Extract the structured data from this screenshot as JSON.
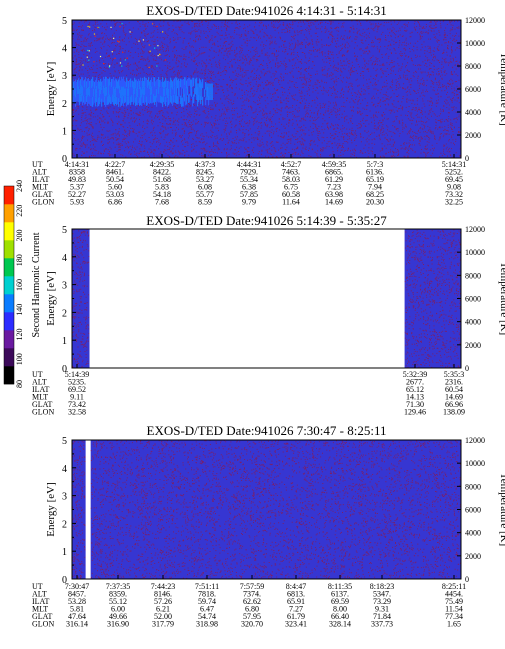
{
  "chart_data": [
    {
      "type": "heatmap",
      "title": "EXOS-D/TED   Date:941026  4:14:31 - 5:14:31",
      "ylabel": "Energy [eV]",
      "y2label": "Temperature [K]",
      "ylim": [
        0,
        5
      ],
      "y2lim": [
        0,
        12000
      ],
      "yticks": [
        "0",
        "1",
        "2",
        "3",
        "4",
        "5"
      ],
      "y2ticks": [
        "0",
        "2000",
        "4000",
        "6000",
        "8000",
        "10000",
        "12000"
      ],
      "table": {
        "row_labels": [
          "UT",
          "ALT",
          "ILAT",
          "MLT",
          "GLAT",
          "GLON"
        ],
        "columns": [
          [
            "4:14:31",
            "8358",
            "49.83",
            "5.37",
            "52.27",
            "5.93"
          ],
          [
            "4:22:7",
            "8461.",
            "50.54",
            "5.60",
            "53.03",
            "6.86"
          ],
          [
            "4:29:35",
            "8422.",
            "51.68",
            "5.83",
            "54.18",
            "7.68"
          ],
          [
            "4:37:3",
            "8245.",
            "53.27",
            "6.08",
            "55.77",
            "8.59"
          ],
          [
            "4:44:31",
            "7929.",
            "55.34",
            "6.38",
            "57.85",
            "9.79"
          ],
          [
            "4:52:7",
            "7463.",
            "58.03",
            "6.75",
            "60.58",
            "11.64"
          ],
          [
            "4:59:35",
            "6865.",
            "61.29",
            "7.23",
            "63.98",
            "14.69"
          ],
          [
            "5:7:3",
            "6136.",
            "65.19",
            "7.94",
            "68.25",
            "20.30"
          ],
          [
            "5:14:31",
            "5252.",
            "69.45",
            "9.08",
            "73.32",
            "32.25"
          ]
        ]
      }
    },
    {
      "type": "heatmap",
      "title": "EXOS-D/TED   Date:941026  5:14:39 - 5:35:27",
      "ylabel": "Energy [eV]",
      "y2label": "Temperature [K]",
      "ylim": [
        0,
        5
      ],
      "y2lim": [
        0,
        12000
      ],
      "yticks": [
        "0",
        "1",
        "2",
        "3",
        "4",
        "5"
      ],
      "y2ticks": [
        "0",
        "2000",
        "4000",
        "6000",
        "8000",
        "10000",
        "12000"
      ],
      "table": {
        "row_labels": [
          "UT",
          "ALT",
          "ILAT",
          "MLT",
          "GLAT",
          "GLON"
        ],
        "columns": [
          [
            "5:14:39",
            "5235.",
            "69.52",
            "9.11",
            "73.42",
            "32.58"
          ],
          [
            "5:32:39",
            "2677.",
            "65.12",
            "14.13",
            "71.30",
            "129.46"
          ],
          [
            "5:35:3",
            "2316.",
            "60.54",
            "14.69",
            "66.96",
            "138.09"
          ]
        ]
      }
    },
    {
      "type": "heatmap",
      "title": "EXOS-D/TED   Date:941026  7:30:47 - 8:25:11",
      "ylabel": "Energy [eV]",
      "y2label": "Temperature [K]",
      "ylim": [
        0,
        5
      ],
      "y2lim": [
        0,
        12000
      ],
      "yticks": [
        "0",
        "1",
        "2",
        "3",
        "4",
        "5"
      ],
      "y2ticks": [
        "0",
        "2000",
        "4000",
        "6000",
        "8000",
        "10000",
        "12000"
      ],
      "table": {
        "row_labels": [
          "UT",
          "ALT",
          "ILAT",
          "MLT",
          "GLAT",
          "GLON"
        ],
        "columns": [
          [
            "7:30:47",
            "8457.",
            "53.28",
            "5.81",
            "47.64",
            "316.14"
          ],
          [
            "7:37:35",
            "8359.",
            "55.12",
            "6.00",
            "49.66",
            "316.90"
          ],
          [
            "7:44:23",
            "8146.",
            "57.26",
            "6.21",
            "52.00",
            "317.79"
          ],
          [
            "7:51:11",
            "7818.",
            "59.74",
            "6.47",
            "54.74",
            "318.98"
          ],
          [
            "7:57:59",
            "7374.",
            "62.62",
            "6.80",
            "57.95",
            "320.70"
          ],
          [
            "8:4:47",
            "6813.",
            "65.91",
            "7.27",
            "61.79",
            "323.41"
          ],
          [
            "8:11:35",
            "6137.",
            "69.59",
            "8.00",
            "66.40",
            "328.14"
          ],
          [
            "8:18:23",
            "5347.",
            "73.29",
            "9.31",
            "71.84",
            "337.73"
          ],
          [
            "8:25:11",
            "4454.",
            "75.49",
            "11.54",
            "77.34",
            "1.65"
          ]
        ]
      }
    }
  ],
  "colorbar": {
    "label": "Second Harmonic Current",
    "ticks": [
      "80",
      "100",
      "120",
      "140",
      "160",
      "180",
      "200",
      "220",
      "240"
    ],
    "colors": [
      "#000000",
      "#3c0a5a",
      "#6a1aa0",
      "#2c2cff",
      "#0a7cff",
      "#00d0d0",
      "#00c850",
      "#9fe000",
      "#ffff00",
      "#ffa000",
      "#ff2000"
    ]
  },
  "colors": {
    "background": "#3636d2",
    "speckle": "#8a1a50",
    "band": "#1c78ff",
    "gap": "#ffffff"
  }
}
